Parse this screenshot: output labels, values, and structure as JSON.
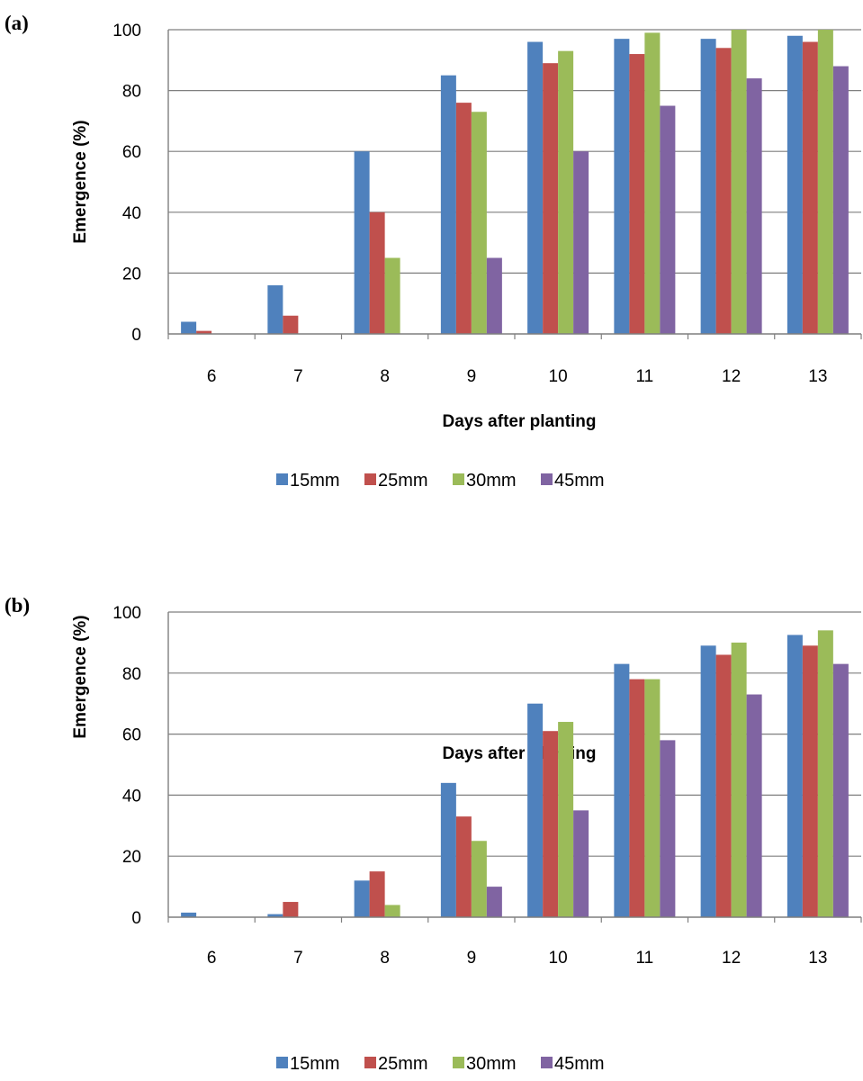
{
  "chart_data": [
    {
      "panel_label": "(a)",
      "type": "bar",
      "categories": [
        "6",
        "7",
        "8",
        "9",
        "10",
        "11",
        "12",
        "13"
      ],
      "series": [
        {
          "name": "15mm",
          "color": "#4F81BD",
          "values": [
            4,
            16,
            60,
            85,
            96,
            97,
            97,
            98
          ]
        },
        {
          "name": "25mm",
          "color": "#C0504D",
          "values": [
            1,
            6,
            40,
            76,
            89,
            92,
            94,
            96
          ]
        },
        {
          "name": "30mm",
          "color": "#9BBB59",
          "values": [
            0,
            0,
            25,
            73,
            93,
            99,
            100,
            100
          ]
        },
        {
          "name": "45mm",
          "color": "#8064A2",
          "values": [
            0,
            0,
            0,
            25,
            60,
            75,
            84,
            88
          ]
        }
      ],
      "xlabel": "Days after planting",
      "ylabel": "Emergence (%)",
      "ylim": [
        0,
        100
      ],
      "yticks": [
        "0",
        "20",
        "40",
        "60",
        "80",
        "100"
      ],
      "grid": true,
      "legend_position": "bottom"
    },
    {
      "panel_label": "(b)",
      "type": "bar",
      "categories": [
        "6",
        "7",
        "8",
        "9",
        "10",
        "11",
        "12",
        "13"
      ],
      "series": [
        {
          "name": "15mm",
          "color": "#4F81BD",
          "values": [
            1.5,
            1,
            12,
            44,
            70,
            83,
            89,
            92.5
          ]
        },
        {
          "name": "25mm",
          "color": "#C0504D",
          "values": [
            0,
            5,
            15,
            33,
            61,
            78,
            86,
            89
          ]
        },
        {
          "name": "30mm",
          "color": "#9BBB59",
          "values": [
            0,
            0,
            4,
            25,
            64,
            78,
            90,
            94
          ]
        },
        {
          "name": "45mm",
          "color": "#8064A2",
          "values": [
            0,
            0,
            0,
            10,
            35,
            58,
            73,
            83
          ]
        }
      ],
      "xlabel": "Days after planting",
      "ylabel": "Emergence (%)",
      "ylim": [
        0,
        100
      ],
      "yticks": [
        "0",
        "20",
        "40",
        "60",
        "80",
        "100"
      ],
      "grid": true,
      "legend_position": "bottom"
    }
  ]
}
